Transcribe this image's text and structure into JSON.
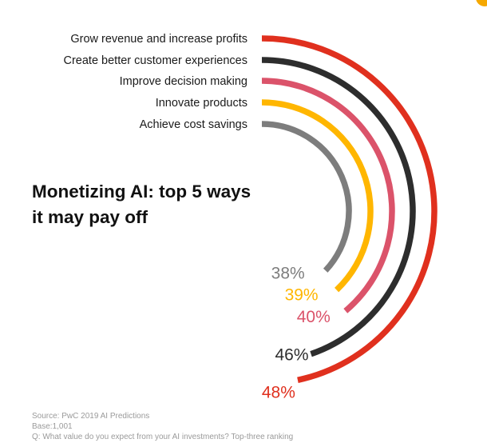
{
  "chart_data": {
    "type": "radial-bar",
    "title_lines": [
      "Monetizing AI: top 5 ways",
      "it may pay off"
    ],
    "categories": [
      "Grow revenue and increase profits",
      "Create better customer experiences",
      "Improve decision making",
      "Innovate products",
      "Achieve cost savings"
    ],
    "values": [
      48,
      46,
      40,
      39,
      38
    ],
    "value_labels": [
      "48%",
      "46%",
      "40%",
      "39%",
      "38%"
    ],
    "colors": [
      "#e0301e",
      "#2d2d2d",
      "#db536a",
      "#ffb600",
      "#7d7d7d"
    ],
    "value_label_colors": [
      "#e0301e",
      "#2d2d2d",
      "#db536a",
      "#ffb600",
      "#7d7d7d"
    ]
  },
  "footnote": {
    "source": "Source: PwC 2019 AI Predictions",
    "base": "Base:1,001",
    "question": "Q: What value do you expect from your AI investments? Top-three ranking"
  },
  "decoration": {
    "corner_color": "#f5a800"
  }
}
